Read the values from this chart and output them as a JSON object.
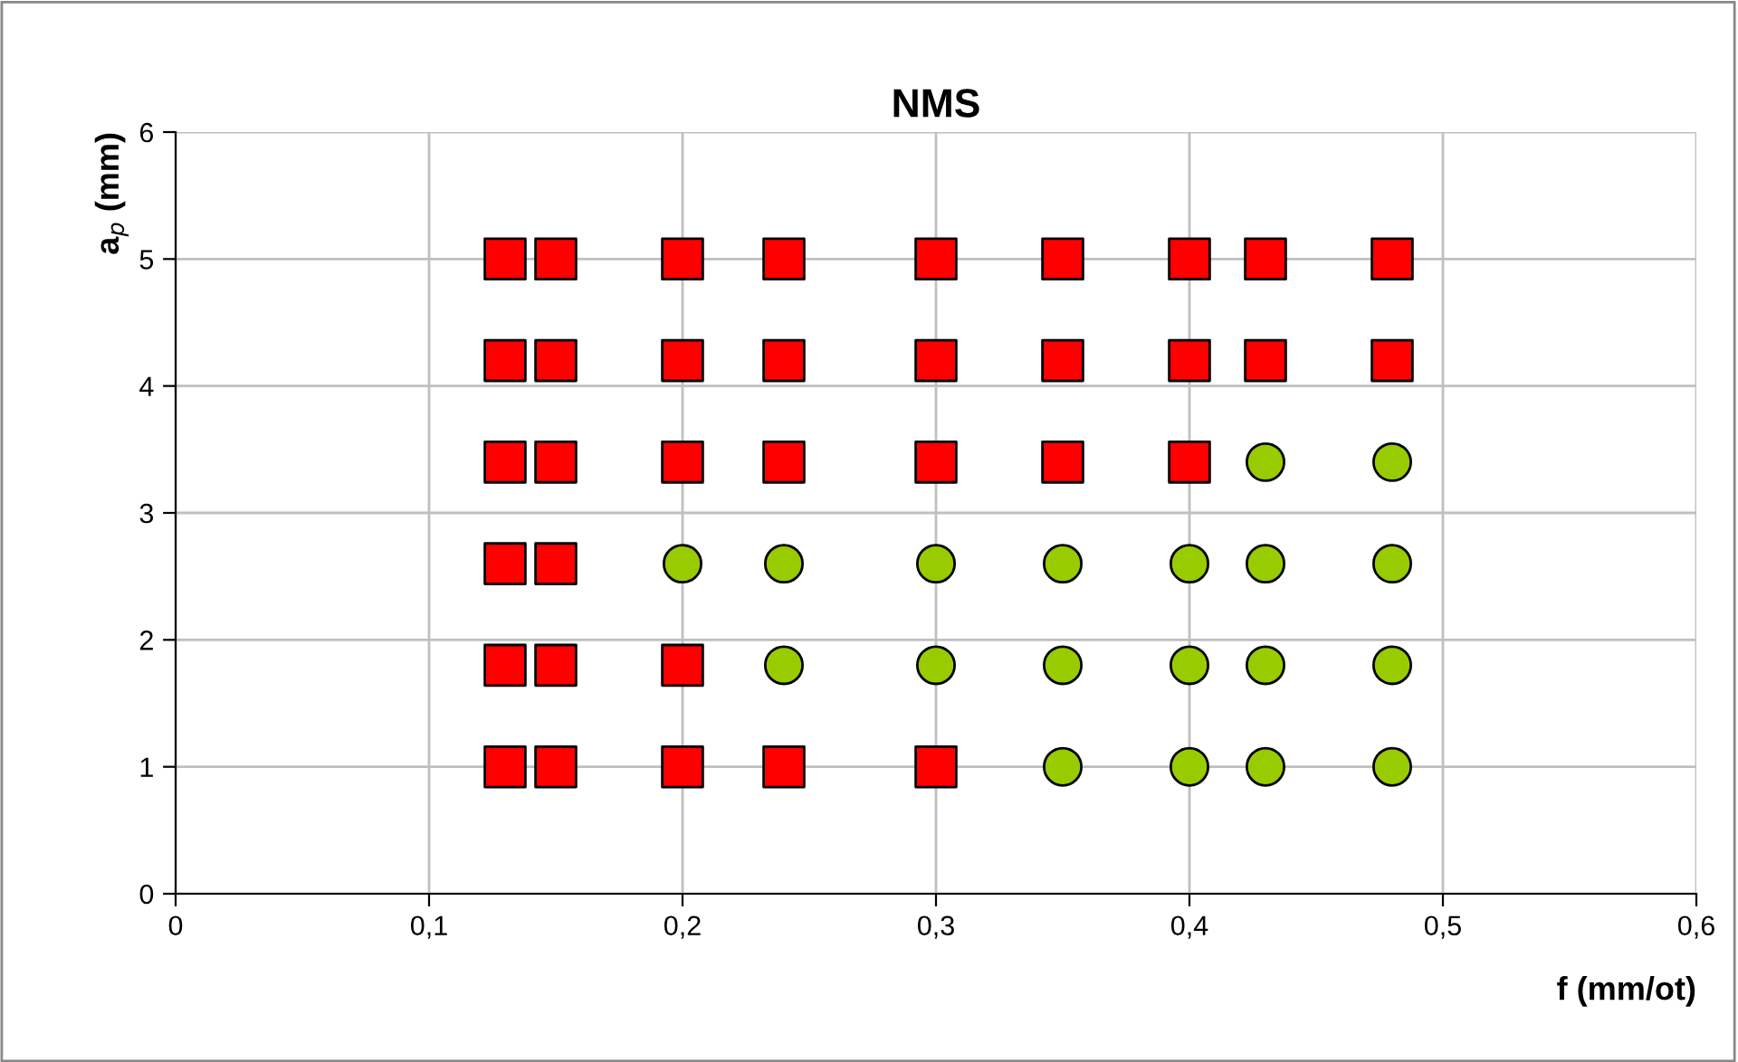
{
  "chart_data": {
    "type": "scatter",
    "title": "NMS",
    "xlabel": "f (mm/ot)",
    "ylabel": "a$_{p}$ (mm)",
    "xlim": [
      0,
      0.6
    ],
    "ylim": [
      0,
      6
    ],
    "xticks": [
      0,
      {
        "value": 0.1,
        "label": "0,1"
      },
      {
        "value": 0.2,
        "label": "0,2"
      },
      {
        "value": 0.3,
        "label": "0,3"
      },
      {
        "value": 0.4,
        "label": "0,4"
      },
      {
        "value": 0.5,
        "label": "0,5"
      },
      {
        "value": 0.6,
        "label": "0,6"
      }
    ],
    "yticks": [
      0,
      1,
      2,
      3,
      4,
      5,
      6
    ],
    "grid": true,
    "series": [
      {
        "color": "#ff0000",
        "marker": "square",
        "x": [
          0.13,
          0.15,
          0.2,
          0.24,
          0.3,
          0.35,
          0.4,
          0.43,
          0.48,
          0.13,
          0.15,
          0.2,
          0.24,
          0.3,
          0.35,
          0.4,
          0.43,
          0.48,
          0.13,
          0.15,
          0.2,
          0.24,
          0.3,
          0.35,
          0.4,
          0.13,
          0.15,
          0.13,
          0.15,
          0.2,
          0.13,
          0.15,
          0.2,
          0.24,
          0.3
        ],
        "values": [
          5.0,
          5.0,
          5.0,
          5.0,
          5.0,
          5.0,
          5.0,
          5.0,
          5.0,
          4.2,
          4.2,
          4.2,
          4.2,
          4.2,
          4.2,
          4.2,
          4.2,
          4.2,
          3.4,
          3.4,
          3.4,
          3.4,
          3.4,
          3.4,
          3.4,
          2.6,
          2.6,
          1.8,
          1.8,
          1.8,
          1.0,
          1.0,
          1.0,
          1.0,
          1.0
        ]
      },
      {
        "color": "#99cc00",
        "marker": "circle",
        "x": [
          0.43,
          0.48,
          0.2,
          0.24,
          0.3,
          0.35,
          0.4,
          0.43,
          0.48,
          0.24,
          0.3,
          0.35,
          0.4,
          0.43,
          0.48,
          0.35,
          0.4,
          0.43,
          0.48
        ],
        "values": [
          3.4,
          3.4,
          2.6,
          2.6,
          2.6,
          2.6,
          2.6,
          2.6,
          2.6,
          1.8,
          1.8,
          1.8,
          1.8,
          1.8,
          1.8,
          1.0,
          1.0,
          1.0,
          1.0
        ]
      }
    ]
  }
}
